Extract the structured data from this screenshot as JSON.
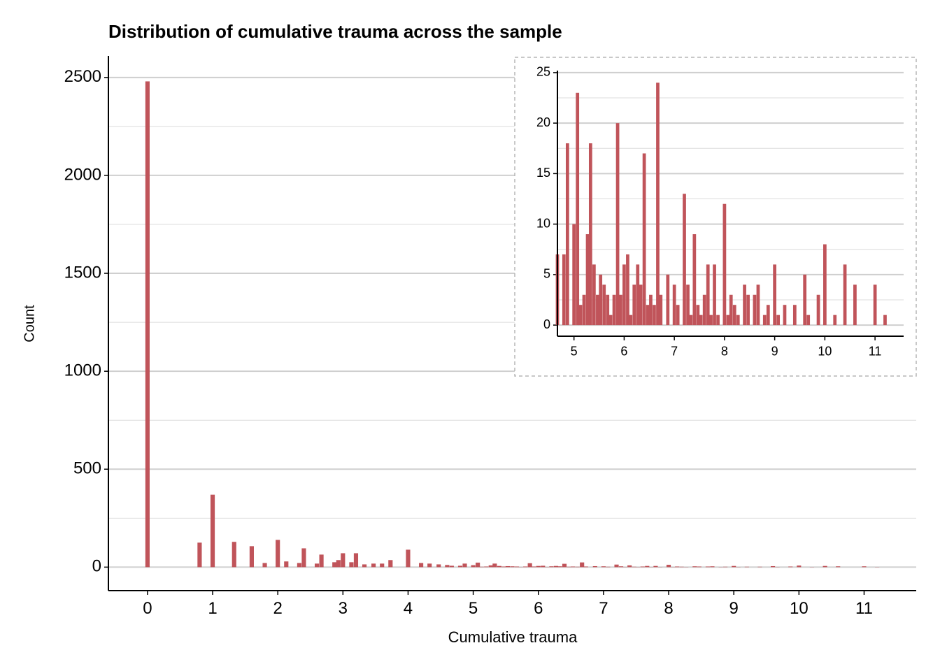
{
  "chart_data": {
    "type": "bar",
    "title": "Distribution of cumulative trauma across the sample",
    "xlabel": "Cumulative trauma",
    "ylabel": "Count",
    "color": "#c0545a",
    "grid": true,
    "xlim": [
      -0.6,
      11.8
    ],
    "ylim": [
      -120,
      2610
    ],
    "xticks": [
      0,
      1,
      2,
      3,
      4,
      5,
      6,
      7,
      8,
      9,
      10,
      11
    ],
    "yticks": [
      0,
      500,
      1000,
      1500,
      2000,
      2500
    ],
    "minor_yticks": [
      250,
      750,
      1250,
      1750,
      2250
    ],
    "x": [
      0,
      0.8,
      1,
      1.33,
      1.6,
      1.8,
      2,
      2.13,
      2.33,
      2.4,
      2.6,
      2.67,
      2.87,
      2.93,
      3,
      3.13,
      3.2,
      3.33,
      3.47,
      3.6,
      3.73,
      4,
      4.2,
      4.33,
      4.47,
      4.6,
      4.67,
      4.8,
      4.87,
      5,
      5.07,
      5.13,
      5.2,
      5.27,
      5.33,
      5.4,
      5.47,
      5.53,
      5.6,
      5.67,
      5.73,
      5.8,
      5.87,
      5.93,
      6,
      6.07,
      6.13,
      6.2,
      6.27,
      6.33,
      6.4,
      6.47,
      6.53,
      6.6,
      6.67,
      6.73,
      6.87,
      7,
      7.07,
      7.2,
      7.27,
      7.33,
      7.4,
      7.47,
      7.53,
      7.6,
      7.67,
      7.73,
      7.8,
      7.87,
      8,
      8.07,
      8.13,
      8.2,
      8.27,
      8.4,
      8.47,
      8.6,
      8.67,
      8.8,
      8.87,
      9,
      9.07,
      9.2,
      9.4,
      9.6,
      9.67,
      9.87,
      10,
      10.2,
      10.4,
      10.6,
      11,
      11.2
    ],
    "values": [
      2480,
      125,
      370,
      129,
      107,
      21,
      139,
      29,
      21,
      96,
      18,
      64,
      25,
      36,
      71,
      25,
      71,
      14,
      18,
      18,
      36,
      89,
      21,
      18,
      14,
      11,
      7,
      7,
      18,
      10,
      23,
      2,
      3,
      9,
      18,
      6,
      3,
      5,
      4,
      3,
      1,
      3,
      20,
      3,
      6,
      7,
      1,
      4,
      6,
      4,
      17,
      2,
      3,
      2,
      24,
      3,
      5,
      4,
      2,
      13,
      4,
      1,
      9,
      2,
      1,
      3,
      6,
      1,
      6,
      1,
      12,
      1,
      3,
      2,
      1,
      4,
      3,
      3,
      4,
      1,
      2,
      6,
      1,
      2,
      2,
      5,
      1,
      3,
      8,
      1,
      6,
      4,
      4,
      1
    ],
    "inset": {
      "xlim": [
        4.67,
        11.57
      ],
      "ylim": [
        -1.1,
        25.2
      ],
      "xticks": [
        5,
        6,
        7,
        8,
        9,
        10,
        11
      ],
      "yticks": [
        0,
        5,
        10,
        15,
        20,
        25
      ],
      "minor_yticks": [
        2.5,
        7.5,
        12.5,
        17.5,
        22.5
      ]
    }
  }
}
